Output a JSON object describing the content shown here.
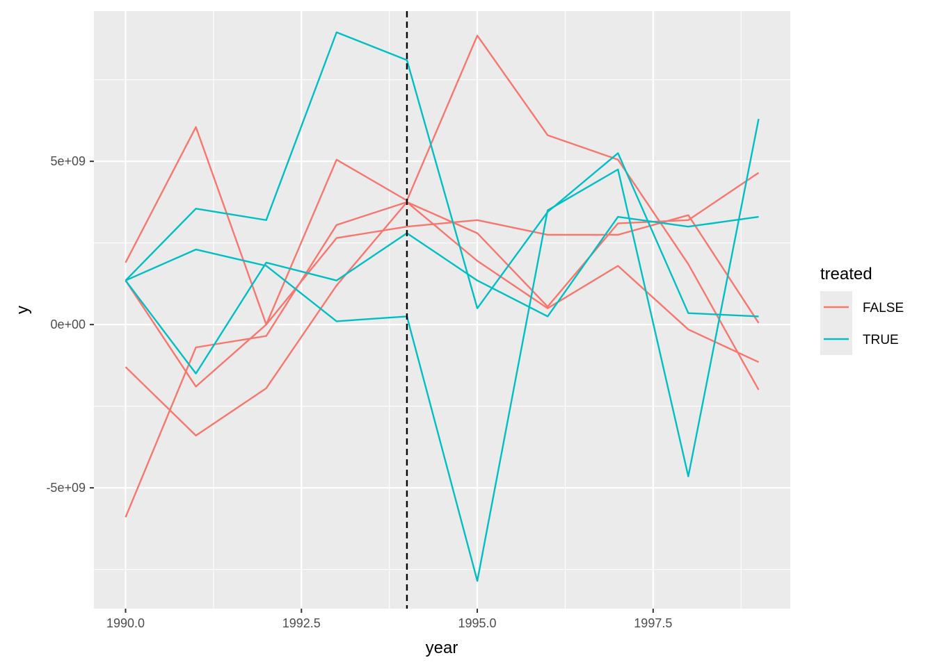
{
  "chart_data": {
    "type": "line",
    "xlabel": "year",
    "ylabel": "y",
    "xlim": [
      1989.55,
      1999.45
    ],
    "ylim": [
      -8700000000.0,
      9600000000.0
    ],
    "x_ticks": [
      1990.0,
      1992.5,
      1995.0,
      1997.5
    ],
    "x_tick_labels": [
      "1990.0",
      "1992.5",
      "1995.0",
      "1997.5"
    ],
    "y_ticks": [
      -5000000000.0,
      0,
      5000000000.0
    ],
    "y_tick_labels": [
      "-5e+09",
      "0e+00",
      "5e+09"
    ],
    "grid": true,
    "vline": {
      "x": 1994,
      "style": "dashed",
      "color": "#000000"
    },
    "legend": {
      "title": "treated",
      "position": "right",
      "entries": [
        {
          "label": "FALSE",
          "color": "#F8766D"
        },
        {
          "label": "TRUE",
          "color": "#00BFC4"
        }
      ]
    },
    "x": [
      1990,
      1991,
      1992,
      1993,
      1994,
      1995,
      1996,
      1997,
      1998,
      1999
    ],
    "series": [
      {
        "group": "FALSE",
        "color": "#F8766D",
        "values": [
          1900000000.0,
          6050000000.0,
          0.0,
          5050000000.0,
          3800000000.0,
          8850000000.0,
          5800000000.0,
          5050000000.0,
          1850000000.0,
          -2000000000.0
        ]
      },
      {
        "group": "FALSE",
        "color": "#F8766D",
        "values": [
          1350000000.0,
          -1900000000.0,
          0.0,
          2650000000.0,
          3000000000.0,
          3200000000.0,
          2750000000.0,
          2750000000.0,
          3350000000.0,
          50000000.0
        ]
      },
      {
        "group": "FALSE",
        "color": "#F8766D",
        "values": [
          -1300000000.0,
          -3400000000.0,
          -1950000000.0,
          1200000000.0,
          3750000000.0,
          1950000000.0,
          500000000.0,
          1800000000.0,
          -150000000.0,
          -1150000000.0
        ]
      },
      {
        "group": "FALSE",
        "color": "#F8766D",
        "values": [
          -5900000000.0,
          -700000000.0,
          -350000000.0,
          3050000000.0,
          3750000000.0,
          2800000000.0,
          550000000.0,
          3100000000.0,
          3200000000.0,
          4650000000.0
        ]
      },
      {
        "group": "TRUE",
        "color": "#00BFC4",
        "values": [
          1350000000.0,
          3550000000.0,
          3200000000.0,
          8950000000.0,
          8100000000.0,
          500000000.0,
          3450000000.0,
          5250000000.0,
          350000000.0,
          250000000.0
        ]
      },
      {
        "group": "TRUE",
        "color": "#00BFC4",
        "values": [
          1350000000.0,
          2300000000.0,
          1800000000.0,
          100000000.0,
          250000000.0,
          -7850000000.0,
          3500000000.0,
          4750000000.0,
          -4650000000.0,
          6300000000.0
        ]
      },
      {
        "group": "TRUE",
        "color": "#00BFC4",
        "values": [
          1350000000.0,
          -1500000000.0,
          1900000000.0,
          1350000000.0,
          2800000000.0,
          1350000000.0,
          250000000.0,
          3300000000.0,
          3000000000.0,
          3300000000.0
        ]
      }
    ]
  }
}
